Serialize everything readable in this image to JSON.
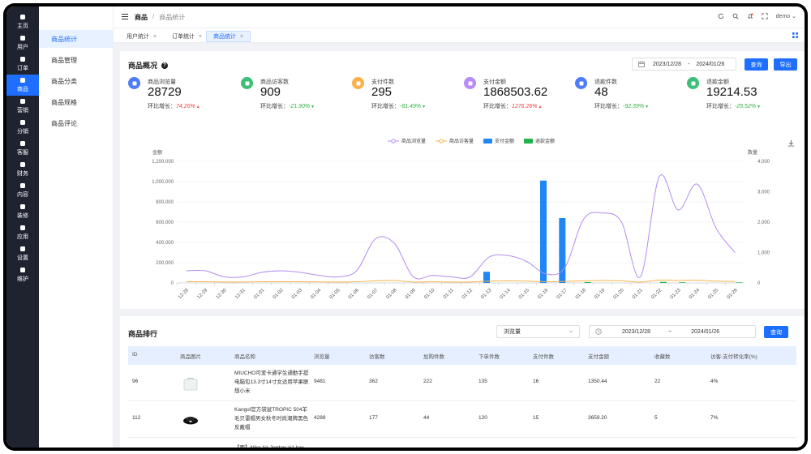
{
  "rail": [
    {
      "label": "主页",
      "icon": "home-icon"
    },
    {
      "label": "用户",
      "icon": "user-icon"
    },
    {
      "label": "订单",
      "icon": "order-icon"
    },
    {
      "label": "商品",
      "icon": "goods-icon",
      "active": true
    },
    {
      "label": "营销",
      "icon": "marketing-icon"
    },
    {
      "label": "分销",
      "icon": "distribution-icon"
    },
    {
      "label": "客服",
      "icon": "service-icon"
    },
    {
      "label": "财务",
      "icon": "finance-icon"
    },
    {
      "label": "内容",
      "icon": "content-icon"
    },
    {
      "label": "装修",
      "icon": "decorate-icon"
    },
    {
      "label": "应用",
      "icon": "apps-icon"
    },
    {
      "label": "设置",
      "icon": "settings-icon"
    },
    {
      "label": "维护",
      "icon": "maintain-icon"
    }
  ],
  "subnav": [
    {
      "label": "商品统计",
      "active": true
    },
    {
      "label": "商品管理"
    },
    {
      "label": "商品分类"
    },
    {
      "label": "商品规格"
    },
    {
      "label": "商品评论"
    }
  ],
  "header": {
    "crumb1": "商品",
    "sep": "/",
    "crumb2": "商品统计",
    "user": "demo"
  },
  "tabs": [
    {
      "label": "用户统计",
      "close": "×"
    },
    {
      "label": "订单统计",
      "close": "×"
    },
    {
      "label": "商品统计",
      "close": "×",
      "active": true
    }
  ],
  "overview": {
    "title": "商品概况",
    "help": "?",
    "date_start": "2023/12/28",
    "date_sep": "-",
    "date_end": "2024/01/26",
    "query_label": "查询",
    "export_label": "导出",
    "ratio_prefix": "环比增长：",
    "metrics": [
      {
        "label": "商品浏览量",
        "value": "28729",
        "ratio": "74.26%",
        "trend": "up",
        "arrow": "▲",
        "color": "#4f7df9",
        "icon": "store-icon"
      },
      {
        "label": "商品访客数",
        "value": "909",
        "ratio": "-21.90%",
        "trend": "down",
        "arrow": "▼",
        "color": "#3dbf78",
        "icon": "visitor-icon"
      },
      {
        "label": "支付件数",
        "value": "295",
        "ratio": "-81.49%",
        "trend": "down",
        "arrow": "▼",
        "color": "#f7b24a",
        "icon": "bag-icon"
      },
      {
        "label": "支付金额",
        "value": "1868503.62",
        "ratio": "1276.26%",
        "trend": "up",
        "arrow": "▲",
        "color": "#b88bf5",
        "icon": "coin-icon"
      },
      {
        "label": "退款件数",
        "value": "48",
        "ratio": "-92.39%",
        "trend": "down",
        "arrow": "▼",
        "color": "#4f7df9",
        "icon": "refund-box-icon"
      },
      {
        "label": "退款金额",
        "value": "19214.53",
        "ratio": "-25.52%",
        "trend": "down",
        "arrow": "▼",
        "color": "#3dbf78",
        "icon": "refund-coin-icon"
      }
    ]
  },
  "chart_data": {
    "type": "line",
    "legend": [
      "商品浏览量",
      "商品访客量",
      "支付金额",
      "退款金额"
    ],
    "y_left_label": "金额",
    "y_right_label": "数量",
    "y_left_ticks": [
      "0",
      "200,000",
      "400,000",
      "600,000",
      "800,000",
      "1,000,000",
      "1,200,000"
    ],
    "y_right_ticks": [
      "0",
      "1,000",
      "2,000",
      "3,000",
      "4,000"
    ],
    "ylim_left": [
      0,
      1200000
    ],
    "ylim_right": [
      0,
      4000
    ],
    "categories": [
      "12-28",
      "12-29",
      "12-30",
      "12-31",
      "01-01",
      "01-02",
      "01-03",
      "01-04",
      "01-05",
      "01-06",
      "01-07",
      "01-08",
      "01-09",
      "01-10",
      "01-11",
      "01-12",
      "01-13",
      "01-14",
      "01-15",
      "01-16",
      "01-17",
      "01-18",
      "01-19",
      "01-20",
      "01-21",
      "01-22",
      "01-23",
      "01-24",
      "01-25",
      "01-26"
    ],
    "series": [
      {
        "name": "商品浏览量",
        "axis": "right",
        "kind": "line",
        "color": "#b48cf0",
        "values": [
          400,
          400,
          200,
          200,
          350,
          400,
          350,
          250,
          200,
          400,
          1450,
          1300,
          200,
          250,
          200,
          200,
          850,
          900,
          700,
          300,
          500,
          2100,
          2300,
          2000,
          200,
          3500,
          2400,
          3250,
          1800,
          1000
        ]
      },
      {
        "name": "商品访客量",
        "axis": "right",
        "kind": "line",
        "color": "#f3b34b",
        "values": [
          40,
          40,
          30,
          30,
          40,
          40,
          40,
          35,
          30,
          40,
          70,
          80,
          30,
          40,
          30,
          30,
          60,
          70,
          60,
          40,
          50,
          70,
          80,
          70,
          30,
          90,
          80,
          90,
          60,
          50
        ]
      },
      {
        "name": "支付金额",
        "axis": "left",
        "kind": "bar",
        "color": "#1e86f5",
        "values": [
          0,
          0,
          0,
          0,
          0,
          0,
          0,
          0,
          0,
          0,
          0,
          0,
          0,
          0,
          0,
          0,
          110000,
          0,
          0,
          1010000,
          640000,
          0,
          0,
          0,
          0,
          0,
          0,
          0,
          0,
          0
        ]
      },
      {
        "name": "退款金额",
        "axis": "left",
        "kind": "bar",
        "color": "#22b24c",
        "values": [
          0,
          0,
          0,
          0,
          0,
          0,
          0,
          0,
          0,
          0,
          0,
          0,
          0,
          0,
          0,
          0,
          0,
          0,
          0,
          0,
          0,
          8000,
          0,
          0,
          0,
          10000,
          6000,
          0,
          0,
          5000
        ]
      }
    ]
  },
  "ranking": {
    "title": "商品排行",
    "sort_select": "浏览量",
    "date_start": "2023/12/28",
    "date_sep": "~",
    "date_end": "2024/01/26",
    "query_label": "查询",
    "columns": [
      "ID",
      "商品图片",
      "商品名称",
      "浏览量",
      "访客数",
      "加购件数",
      "下单件数",
      "支付件数",
      "支付金额",
      "收藏数",
      "访客-支付转化率(%)"
    ],
    "rows": [
      {
        "id": "96",
        "name": "MIUCHO可爱卡通学生通勤手提电脑包13.3寸14寸女适用苹果联想小米",
        "views": "9481",
        "visitors": "362",
        "cart": "222",
        "orders": "135",
        "paid": "16",
        "amount": "1350.44",
        "fav": "22",
        "rate": "4%",
        "thumb": "bag-thumb"
      },
      {
        "id": "112",
        "name": "Kangol官方袋鼠TROPIC 504羊毛贝雷帽男女秋冬时尚潮牌黑色反戴帽",
        "views": "4288",
        "visitors": "177",
        "cart": "44",
        "orders": "120",
        "paid": "15",
        "amount": "3659.20",
        "fav": "5",
        "rate": "7%",
        "thumb": "hat-thumb"
      },
      {
        "name_partial": "【雨】Nike Air Jordan aj1 low"
      }
    ]
  }
}
